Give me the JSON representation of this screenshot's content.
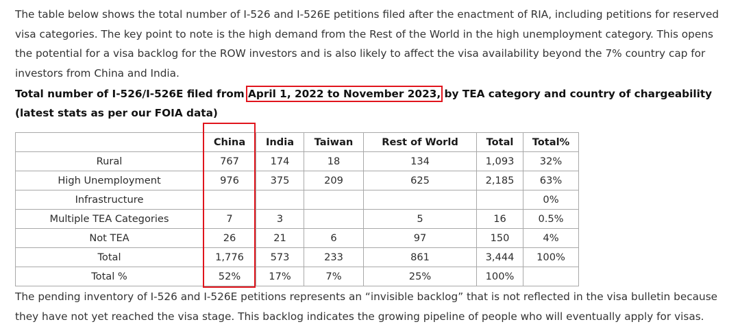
{
  "intro": "The table below shows the total number of I-526 and I-526E petitions filed after the enactment of RIA, including petitions for reserved visa categories. The key point to note is the high demand from the Rest of the World in the high unemployment category. This opens the potential for a visa backlog for the ROW investors and is also likely to affect the visa availability beyond the 7% country cap for investors from China and India.",
  "heading": {
    "before": "Total number of I-526/I-526E filed from",
    "date_range": "April 1, 2022 to November 2023,",
    "after": "by TEA category and country of chargeability (latest stats as per our FOIA data)"
  },
  "table": {
    "headers": [
      "",
      "China",
      "India",
      "Taiwan",
      "Rest of World",
      "Total",
      "Total%"
    ],
    "rows": [
      [
        "Rural",
        "767",
        "174",
        "18",
        "134",
        "1,093",
        "32%"
      ],
      [
        "High Unemployment",
        "976",
        "375",
        "209",
        "625",
        "2,185",
        "63%"
      ],
      [
        "Infrastructure",
        "",
        "",
        "",
        "",
        "",
        "0%"
      ],
      [
        "Multiple TEA Categories",
        "7",
        "3",
        "",
        "5",
        "16",
        "0.5%"
      ],
      [
        "Not TEA",
        "26",
        "21",
        "6",
        "97",
        "150",
        "4%"
      ],
      [
        "Total",
        "1,776",
        "573",
        "233",
        "861",
        "3,444",
        "100%"
      ],
      [
        "Total %",
        "52%",
        "17%",
        "7%",
        "25%",
        "100%",
        ""
      ]
    ]
  },
  "outro": "The pending inventory of I-526 and I-526E petitions represents an “invisible backlog” that is not reflected in the visa bulletin because they have not yet reached the visa stage. This backlog indicates the growing pipeline of people who will eventually apply for visas.",
  "highlight_color": "#e0141c"
}
